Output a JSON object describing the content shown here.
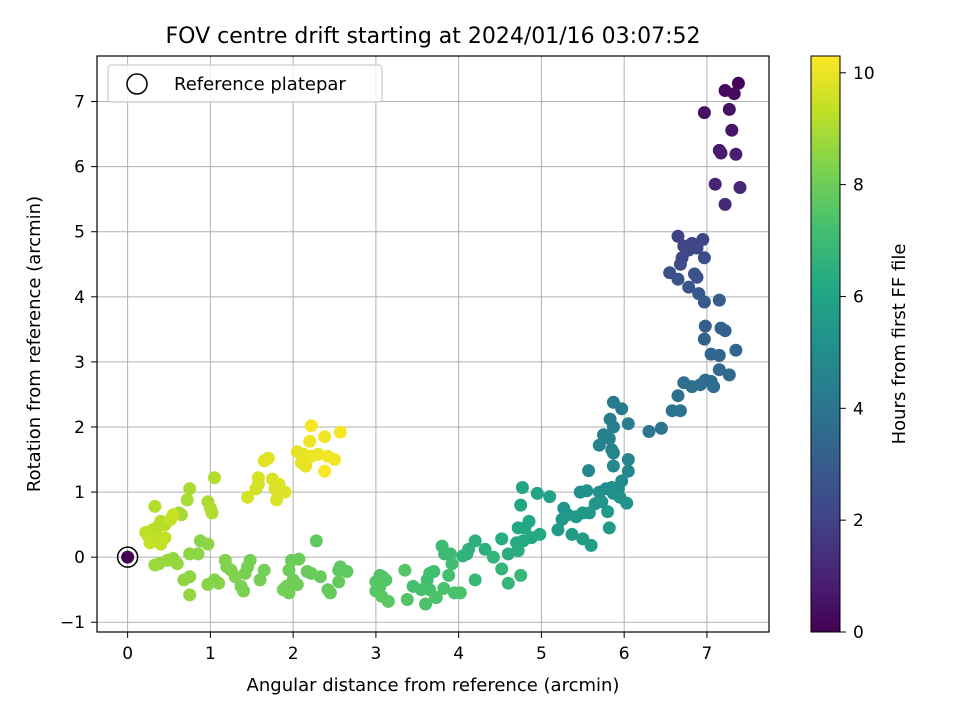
{
  "chart_data": {
    "type": "scatter",
    "title": "FOV centre drift starting at 2024/01/16 03:07:52",
    "xlabel": "Angular distance from reference (arcmin)",
    "ylabel": "Rotation from reference (arcmin)",
    "xlim": [
      -0.37,
      7.75
    ],
    "ylim": [
      -1.15,
      7.7
    ],
    "x_ticks": [
      0,
      1,
      2,
      3,
      4,
      5,
      6,
      7
    ],
    "y_ticks": [
      -1,
      0,
      1,
      2,
      3,
      4,
      5,
      6,
      7
    ],
    "grid": true,
    "legend": {
      "position": "upper left",
      "entries": [
        "Reference platepar"
      ]
    },
    "colorbar": {
      "label": "Hours from first FF file",
      "colormap": "viridis",
      "range": [
        0,
        10.3
      ],
      "ticks": [
        0,
        2,
        4,
        6,
        8,
        10
      ]
    },
    "reference_point": {
      "x": 0,
      "y": 0,
      "color_value": 0
    },
    "points": [
      [
        7.38,
        7.28,
        0.1
      ],
      [
        7.22,
        7.17,
        0.2
      ],
      [
        7.33,
        7.12,
        0.3
      ],
      [
        6.97,
        6.83,
        0.4
      ],
      [
        7.27,
        6.88,
        0.5
      ],
      [
        7.3,
        6.56,
        0.6
      ],
      [
        7.15,
        6.25,
        0.7
      ],
      [
        7.17,
        6.21,
        0.8
      ],
      [
        7.35,
        6.19,
        0.9
      ],
      [
        7.1,
        5.73,
        1.0
      ],
      [
        7.4,
        5.68,
        1.1
      ],
      [
        7.22,
        5.42,
        1.2
      ],
      [
        6.65,
        4.93,
        2.0
      ],
      [
        6.72,
        4.78,
        2.05
      ],
      [
        6.82,
        4.82,
        2.1
      ],
      [
        6.95,
        4.88,
        2.15
      ],
      [
        6.88,
        4.75,
        2.2
      ],
      [
        6.7,
        4.6,
        2.3
      ],
      [
        6.68,
        4.5,
        2.35
      ],
      [
        6.78,
        4.72,
        2.25
      ],
      [
        6.97,
        4.6,
        2.4
      ],
      [
        6.55,
        4.37,
        2.5
      ],
      [
        6.85,
        4.35,
        2.55
      ],
      [
        6.88,
        4.3,
        2.6
      ],
      [
        6.65,
        4.27,
        2.65
      ],
      [
        6.78,
        4.15,
        2.7
      ],
      [
        6.9,
        4.05,
        2.8
      ],
      [
        6.97,
        3.92,
        2.9
      ],
      [
        7.15,
        3.95,
        3.0
      ],
      [
        6.98,
        3.55,
        3.1
      ],
      [
        7.17,
        3.52,
        3.15
      ],
      [
        7.22,
        3.48,
        3.2
      ],
      [
        6.97,
        3.35,
        3.25
      ],
      [
        7.35,
        3.18,
        3.3
      ],
      [
        7.05,
        3.12,
        3.35
      ],
      [
        7.15,
        3.1,
        3.4
      ],
      [
        7.15,
        2.88,
        3.45
      ],
      [
        7.27,
        2.8,
        3.5
      ],
      [
        6.98,
        2.72,
        3.6
      ],
      [
        6.92,
        2.65,
        3.65
      ],
      [
        7.05,
        2.7,
        3.6
      ],
      [
        6.72,
        2.68,
        3.7
      ],
      [
        6.82,
        2.62,
        3.75
      ],
      [
        7.08,
        2.62,
        3.7
      ],
      [
        6.65,
        2.48,
        3.8
      ],
      [
        6.58,
        2.25,
        3.85
      ],
      [
        6.68,
        2.25,
        3.9
      ],
      [
        6.45,
        1.98,
        3.95
      ],
      [
        6.3,
        1.93,
        4.0
      ],
      [
        5.87,
        2.38,
        4.2
      ],
      [
        5.97,
        2.28,
        4.25
      ],
      [
        5.83,
        2.12,
        4.3
      ],
      [
        5.87,
        2.0,
        4.35
      ],
      [
        6.05,
        2.05,
        4.4
      ],
      [
        5.75,
        1.88,
        4.45
      ],
      [
        5.82,
        1.82,
        4.5
      ],
      [
        5.85,
        1.65,
        4.55
      ],
      [
        5.7,
        1.72,
        4.6
      ],
      [
        5.87,
        1.6,
        4.65
      ],
      [
        6.05,
        1.5,
        4.7
      ],
      [
        6.05,
        1.32,
        4.75
      ],
      [
        5.57,
        1.33,
        4.8
      ],
      [
        5.87,
        1.4,
        4.85
      ],
      [
        5.97,
        1.17,
        4.9
      ],
      [
        5.85,
        1.07,
        4.95
      ],
      [
        5.78,
        1.05,
        5.0
      ],
      [
        5.93,
        1.05,
        5.0
      ],
      [
        5.7,
        1.0,
        5.05
      ],
      [
        5.87,
        0.98,
        5.1
      ],
      [
        5.47,
        1.0,
        5.1
      ],
      [
        5.55,
        1.02,
        5.15
      ],
      [
        5.95,
        0.92,
        5.2
      ],
      [
        6.03,
        0.83,
        5.25
      ],
      [
        5.73,
        0.85,
        5.25
      ],
      [
        5.65,
        0.82,
        5.3
      ],
      [
        5.27,
        0.75,
        5.35
      ],
      [
        5.32,
        0.65,
        5.4
      ],
      [
        5.5,
        0.68,
        5.45
      ],
      [
        5.58,
        0.68,
        5.45
      ],
      [
        5.25,
        0.58,
        5.5
      ],
      [
        5.42,
        0.62,
        5.5
      ],
      [
        5.8,
        0.7,
        5.55
      ],
      [
        5.82,
        0.45,
        5.6
      ],
      [
        5.2,
        0.42,
        5.6
      ],
      [
        5.37,
        0.35,
        5.65
      ],
      [
        5.5,
        0.28,
        5.7
      ],
      [
        5.6,
        0.18,
        5.75
      ],
      [
        5.1,
        0.93,
        5.9
      ],
      [
        4.95,
        0.98,
        5.95
      ],
      [
        4.77,
        1.07,
        6.0
      ],
      [
        4.75,
        0.8,
        6.05
      ],
      [
        4.85,
        0.55,
        6.1
      ],
      [
        4.72,
        0.45,
        6.15
      ],
      [
        4.8,
        0.45,
        6.15
      ],
      [
        4.88,
        0.3,
        6.2
      ],
      [
        4.98,
        0.35,
        6.2
      ],
      [
        4.78,
        0.25,
        6.25
      ],
      [
        4.7,
        0.22,
        6.3
      ],
      [
        4.52,
        0.28,
        6.35
      ],
      [
        4.6,
        0.05,
        6.4
      ],
      [
        4.72,
        0.1,
        6.45
      ],
      [
        4.32,
        0.12,
        6.5
      ],
      [
        4.2,
        0.25,
        6.55
      ],
      [
        4.12,
        0.12,
        6.6
      ],
      [
        4.1,
        0.05,
        6.6
      ],
      [
        4.05,
        0.02,
        6.65
      ],
      [
        4.42,
        0.0,
        6.7
      ],
      [
        4.52,
        -0.18,
        6.75
      ],
      [
        4.6,
        -0.4,
        6.8
      ],
      [
        4.75,
        -0.28,
        6.85
      ],
      [
        4.2,
        -0.35,
        6.9
      ],
      [
        3.8,
        0.17,
        7.0
      ],
      [
        3.83,
        0.05,
        7.0
      ],
      [
        3.9,
        0.05,
        7.05
      ],
      [
        3.92,
        -0.1,
        7.1
      ],
      [
        3.7,
        -0.22,
        7.1
      ],
      [
        3.65,
        -0.25,
        7.15
      ],
      [
        3.62,
        -0.35,
        7.15
      ],
      [
        3.88,
        -0.28,
        7.2
      ],
      [
        3.45,
        -0.45,
        7.2
      ],
      [
        3.55,
        -0.5,
        7.25
      ],
      [
        3.65,
        -0.5,
        7.25
      ],
      [
        3.82,
        -0.48,
        7.3
      ],
      [
        3.95,
        -0.55,
        7.3
      ],
      [
        4.02,
        -0.55,
        7.35
      ],
      [
        3.72,
        -0.62,
        7.35
      ],
      [
        3.6,
        -0.72,
        7.4
      ],
      [
        3.73,
        -0.62,
        7.4
      ],
      [
        3.38,
        -0.65,
        7.45
      ],
      [
        3.05,
        -0.28,
        7.45
      ],
      [
        3.08,
        -0.3,
        7.5
      ],
      [
        3.12,
        -0.35,
        7.5
      ],
      [
        3.0,
        -0.38,
        7.55
      ],
      [
        3.35,
        -0.2,
        7.55
      ],
      [
        3.05,
        -0.45,
        7.6
      ],
      [
        3.0,
        -0.52,
        7.6
      ],
      [
        3.07,
        -0.6,
        7.65
      ],
      [
        3.15,
        -0.68,
        7.65
      ],
      [
        2.28,
        0.25,
        7.7
      ],
      [
        2.57,
        -0.15,
        7.7
      ],
      [
        2.55,
        -0.2,
        7.75
      ],
      [
        2.65,
        -0.22,
        7.75
      ],
      [
        2.55,
        -0.38,
        7.8
      ],
      [
        2.42,
        -0.5,
        7.8
      ],
      [
        2.45,
        -0.55,
        7.85
      ],
      [
        2.33,
        -0.3,
        7.85
      ],
      [
        2.17,
        -0.22,
        7.9
      ],
      [
        2.22,
        -0.25,
        7.9
      ],
      [
        2.07,
        -0.03,
        7.95
      ],
      [
        1.98,
        -0.05,
        7.95
      ],
      [
        1.95,
        -0.2,
        8.0
      ],
      [
        2.0,
        -0.35,
        8.0
      ],
      [
        2.05,
        -0.42,
        8.0
      ],
      [
        1.92,
        -0.45,
        8.05
      ],
      [
        1.95,
        -0.55,
        8.05
      ],
      [
        1.88,
        -0.5,
        8.1
      ],
      [
        1.65,
        -0.2,
        8.1
      ],
      [
        1.6,
        -0.35,
        8.15
      ],
      [
        1.48,
        -0.05,
        8.15
      ],
      [
        1.45,
        -0.15,
        8.2
      ],
      [
        1.42,
        -0.25,
        8.2
      ],
      [
        1.37,
        -0.45,
        8.25
      ],
      [
        1.4,
        -0.52,
        8.25
      ],
      [
        1.3,
        -0.3,
        8.3
      ],
      [
        1.25,
        -0.2,
        8.3
      ],
      [
        1.2,
        -0.15,
        8.35
      ],
      [
        1.18,
        -0.05,
        8.35
      ],
      [
        1.1,
        -0.4,
        8.4
      ],
      [
        1.05,
        -0.35,
        8.4
      ],
      [
        0.97,
        -0.42,
        8.45
      ],
      [
        0.88,
        0.25,
        8.45
      ],
      [
        0.97,
        0.2,
        8.5
      ],
      [
        0.85,
        0.05,
        8.5
      ],
      [
        0.75,
        0.05,
        8.55
      ],
      [
        0.75,
        -0.3,
        8.55
      ],
      [
        0.68,
        -0.35,
        8.6
      ],
      [
        0.75,
        -0.58,
        8.6
      ],
      [
        0.6,
        -0.1,
        8.65
      ],
      [
        0.55,
        -0.02,
        8.65
      ],
      [
        0.48,
        -0.05,
        8.7
      ],
      [
        0.38,
        -0.1,
        8.7
      ],
      [
        0.33,
        -0.12,
        8.75
      ],
      [
        0.62,
        0.68,
        8.9
      ],
      [
        0.65,
        0.65,
        8.9
      ],
      [
        0.72,
        0.88,
        8.95
      ],
      [
        0.75,
        1.05,
        9.0
      ],
      [
        0.97,
        0.85,
        9.0
      ],
      [
        1.0,
        0.75,
        9.05
      ],
      [
        1.02,
        0.68,
        9.05
      ],
      [
        1.05,
        1.22,
        9.1
      ],
      [
        0.33,
        0.78,
        9.1
      ],
      [
        0.4,
        0.55,
        9.15
      ],
      [
        0.45,
        0.5,
        9.15
      ],
      [
        0.35,
        0.45,
        9.2
      ],
      [
        0.3,
        0.42,
        9.2
      ],
      [
        0.22,
        0.38,
        9.25
      ],
      [
        0.25,
        0.32,
        9.25
      ],
      [
        0.28,
        0.28,
        9.3
      ],
      [
        0.38,
        0.28,
        9.3
      ],
      [
        0.45,
        0.3,
        9.35
      ],
      [
        0.4,
        0.2,
        9.35
      ],
      [
        0.27,
        0.22,
        9.4
      ],
      [
        0.52,
        0.58,
        9.4
      ],
      [
        0.55,
        0.65,
        9.45
      ],
      [
        1.45,
        0.92,
        9.6
      ],
      [
        1.55,
        1.05,
        9.6
      ],
      [
        1.58,
        1.12,
        9.65
      ],
      [
        1.58,
        1.22,
        9.65
      ],
      [
        1.75,
        1.2,
        9.7
      ],
      [
        1.78,
        1.05,
        9.7
      ],
      [
        1.8,
        0.88,
        9.75
      ],
      [
        1.83,
        1.12,
        9.75
      ],
      [
        1.9,
        1.0,
        9.8
      ],
      [
        1.65,
        1.48,
        9.85
      ],
      [
        1.7,
        1.52,
        9.85
      ],
      [
        2.05,
        1.62,
        9.9
      ],
      [
        2.13,
        1.58,
        9.9
      ],
      [
        2.1,
        1.45,
        9.95
      ],
      [
        2.15,
        1.4,
        9.95
      ],
      [
        2.22,
        1.55,
        10.0
      ],
      [
        2.3,
        1.58,
        10.0
      ],
      [
        2.2,
        1.78,
        10.05
      ],
      [
        2.38,
        1.85,
        10.05
      ],
      [
        2.42,
        1.55,
        10.1
      ],
      [
        2.5,
        1.5,
        10.1
      ],
      [
        2.57,
        1.92,
        10.15
      ],
      [
        2.22,
        2.02,
        10.2
      ],
      [
        2.38,
        1.32,
        10.25
      ]
    ]
  }
}
